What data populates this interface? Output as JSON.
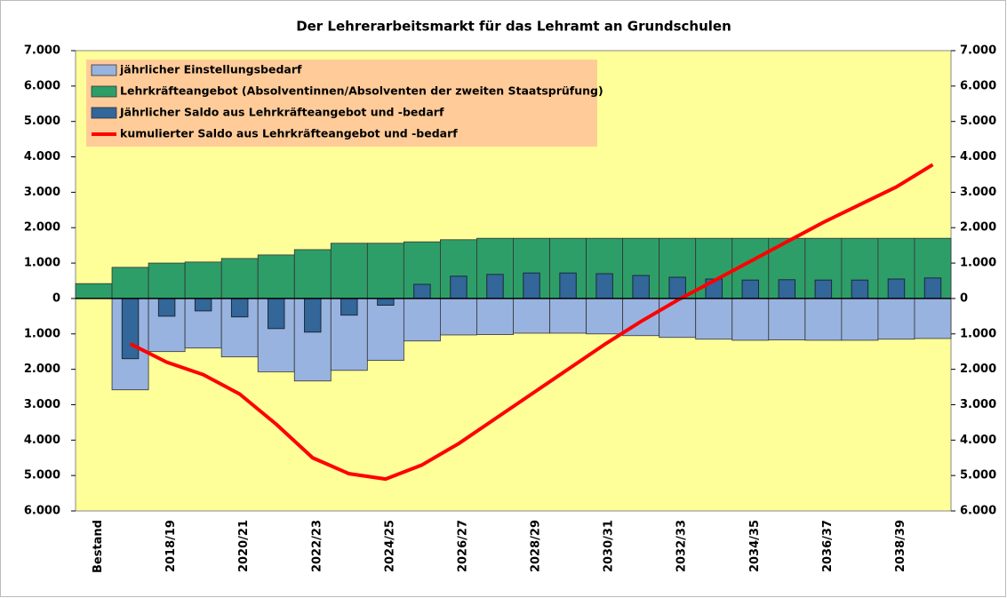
{
  "chart_data": {
    "type": "bar",
    "title": "Der Lehrerarbeitsmarkt für das Lehramt an Grundschulen",
    "categories": [
      "Bestand",
      null,
      "2018/19",
      null,
      "2020/21",
      null,
      "2022/23",
      null,
      "2024/25",
      null,
      "2026/27",
      null,
      "2028/29",
      null,
      "2030/31",
      null,
      "2032/33",
      null,
      "2034/35",
      null,
      "2036/37",
      null,
      "2038/39",
      null
    ],
    "series": [
      {
        "name": "jährlicher Einstellungsbedarf",
        "type": "bar",
        "color": "#99b3e0",
        "values": [
          null,
          -2580,
          -1500,
          -1400,
          -1650,
          -2070,
          -2330,
          -2030,
          -1750,
          -1200,
          -1030,
          -1020,
          -980,
          -980,
          -1000,
          -1050,
          -1100,
          -1150,
          -1180,
          -1170,
          -1180,
          -1180,
          -1150,
          -1130
        ]
      },
      {
        "name": "Lehrkräfteangebot (Absolventinnen/Absolventen der zweiten Staatsprüfung)",
        "type": "bar",
        "color": "#2e9e68",
        "values": [
          420,
          880,
          1000,
          1030,
          1130,
          1230,
          1380,
          1560,
          1560,
          1600,
          1660,
          1700,
          1700,
          1700,
          1700,
          1700,
          1700,
          1700,
          1700,
          1700,
          1700,
          1700,
          1700,
          1700
        ]
      },
      {
        "name": "Jährlicher Saldo aus Lehrkräfteangebot und -bedarf",
        "type": "bar",
        "color": "#336699",
        "values": [
          null,
          -1700,
          -500,
          -350,
          -520,
          -850,
          -950,
          -470,
          -190,
          400,
          630,
          680,
          720,
          720,
          700,
          650,
          600,
          550,
          520,
          530,
          520,
          520,
          550,
          580
        ]
      },
      {
        "name": "kumulierter Saldo aus Lehrkräfteangebot und -bedarf",
        "type": "line",
        "color": "#ff0000",
        "values": [
          null,
          -1280,
          -1800,
          -2150,
          -2700,
          -3550,
          -4500,
          -4950,
          -5100,
          -4700,
          -4100,
          -3400,
          -2700,
          -2000,
          -1300,
          -650,
          -50,
          500,
          1050,
          1600,
          2150,
          2650,
          3150,
          3780
        ]
      }
    ],
    "ylim": [
      -6000,
      7000
    ],
    "yticks": [
      {
        "value": 7000,
        "label": "7.000"
      },
      {
        "value": 6000,
        "label": "6.000"
      },
      {
        "value": 5000,
        "label": "5.000"
      },
      {
        "value": 4000,
        "label": "4.000"
      },
      {
        "value": 3000,
        "label": "3.000"
      },
      {
        "value": 2000,
        "label": "2.000"
      },
      {
        "value": 1000,
        "label": "1.000"
      },
      0,
      {
        "value": -1000,
        "label": "1.000"
      },
      {
        "value": -2000,
        "label": "2.000"
      },
      {
        "value": -3000,
        "label": "3.000"
      },
      {
        "value": -4000,
        "label": "4.000"
      },
      {
        "value": -5000,
        "label": "5.000"
      },
      {
        "value": -6000,
        "label": "6.000"
      }
    ],
    "y2lim": [
      -6000,
      7000
    ],
    "y2ticks": [
      {
        "value": 7000,
        "label": "7.000"
      },
      {
        "value": 6000,
        "label": "6.000"
      },
      {
        "value": 5000,
        "label": "5.000"
      },
      {
        "value": 4000,
        "label": "4.000"
      },
      {
        "value": 3000,
        "label": "3.000"
      },
      {
        "value": 2000,
        "label": "2.000"
      },
      {
        "value": 1000,
        "label": "1.000"
      },
      0,
      {
        "value": -1000,
        "label": "1.000"
      },
      {
        "value": -2000,
        "label": "2.000"
      },
      {
        "value": -3000,
        "label": "3.000"
      },
      {
        "value": -4000,
        "label": "4.000"
      },
      {
        "value": -5000,
        "label": "5.000"
      },
      {
        "value": -6000,
        "label": "6.000"
      }
    ],
    "grid": false,
    "legend": "upper left",
    "background": "#ffff99",
    "legend_color": "#ffcc99"
  }
}
